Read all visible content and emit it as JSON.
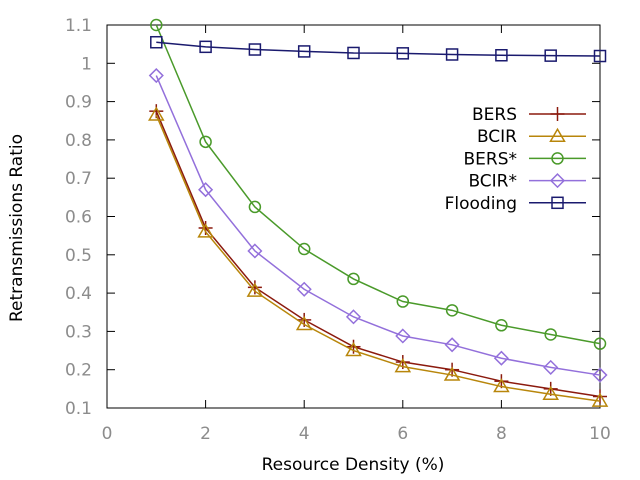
{
  "chart_data": {
    "type": "line",
    "title": "",
    "xlabel": "Resource Density (%)",
    "ylabel": "Retransmissions Ratio",
    "xlim": [
      0,
      10
    ],
    "ylim": [
      0.1,
      1.1
    ],
    "x_ticks": [
      0,
      2,
      4,
      6,
      8,
      10
    ],
    "x_tick_labels": [
      "0",
      "2",
      "4",
      "6",
      "8",
      "10"
    ],
    "y_ticks": [
      0.1,
      0.2,
      0.3,
      0.4,
      0.5,
      0.6,
      0.7,
      0.8,
      0.9,
      1.0,
      1.1
    ],
    "y_tick_labels": [
      "0.1",
      "0.2",
      "0.3",
      "0.4",
      "0.5",
      "0.6",
      "0.7",
      "0.8",
      "0.9",
      "1",
      "1.1"
    ],
    "grid": false,
    "legend_position": "right",
    "x": [
      1,
      2,
      3,
      4,
      5,
      6,
      7,
      8,
      9,
      10
    ],
    "series": [
      {
        "name": "BERS",
        "color": "#8b1a0e",
        "marker": "plus",
        "values": [
          0.875,
          0.57,
          0.415,
          0.33,
          0.26,
          0.22,
          0.2,
          0.17,
          0.15,
          0.13
        ]
      },
      {
        "name": "BCIR",
        "color": "#b8860b",
        "marker": "triangle",
        "values": [
          0.865,
          0.56,
          0.405,
          0.318,
          0.25,
          0.208,
          0.186,
          0.156,
          0.136,
          0.118
        ]
      },
      {
        "name": "BERS*",
        "color": "#4a9a2a",
        "marker": "circle",
        "values": [
          1.1,
          0.795,
          0.625,
          0.515,
          0.437,
          0.378,
          0.355,
          0.316,
          0.292,
          0.268
        ]
      },
      {
        "name": "BCIR*",
        "color": "#9370db",
        "marker": "diamond",
        "values": [
          0.968,
          0.67,
          0.51,
          0.41,
          0.338,
          0.288,
          0.265,
          0.23,
          0.206,
          0.186
        ]
      },
      {
        "name": "Flooding",
        "color": "#1a1a6e",
        "marker": "square",
        "values": [
          1.055,
          1.043,
          1.036,
          1.031,
          1.027,
          1.026,
          1.023,
          1.021,
          1.02,
          1.019
        ]
      }
    ]
  }
}
